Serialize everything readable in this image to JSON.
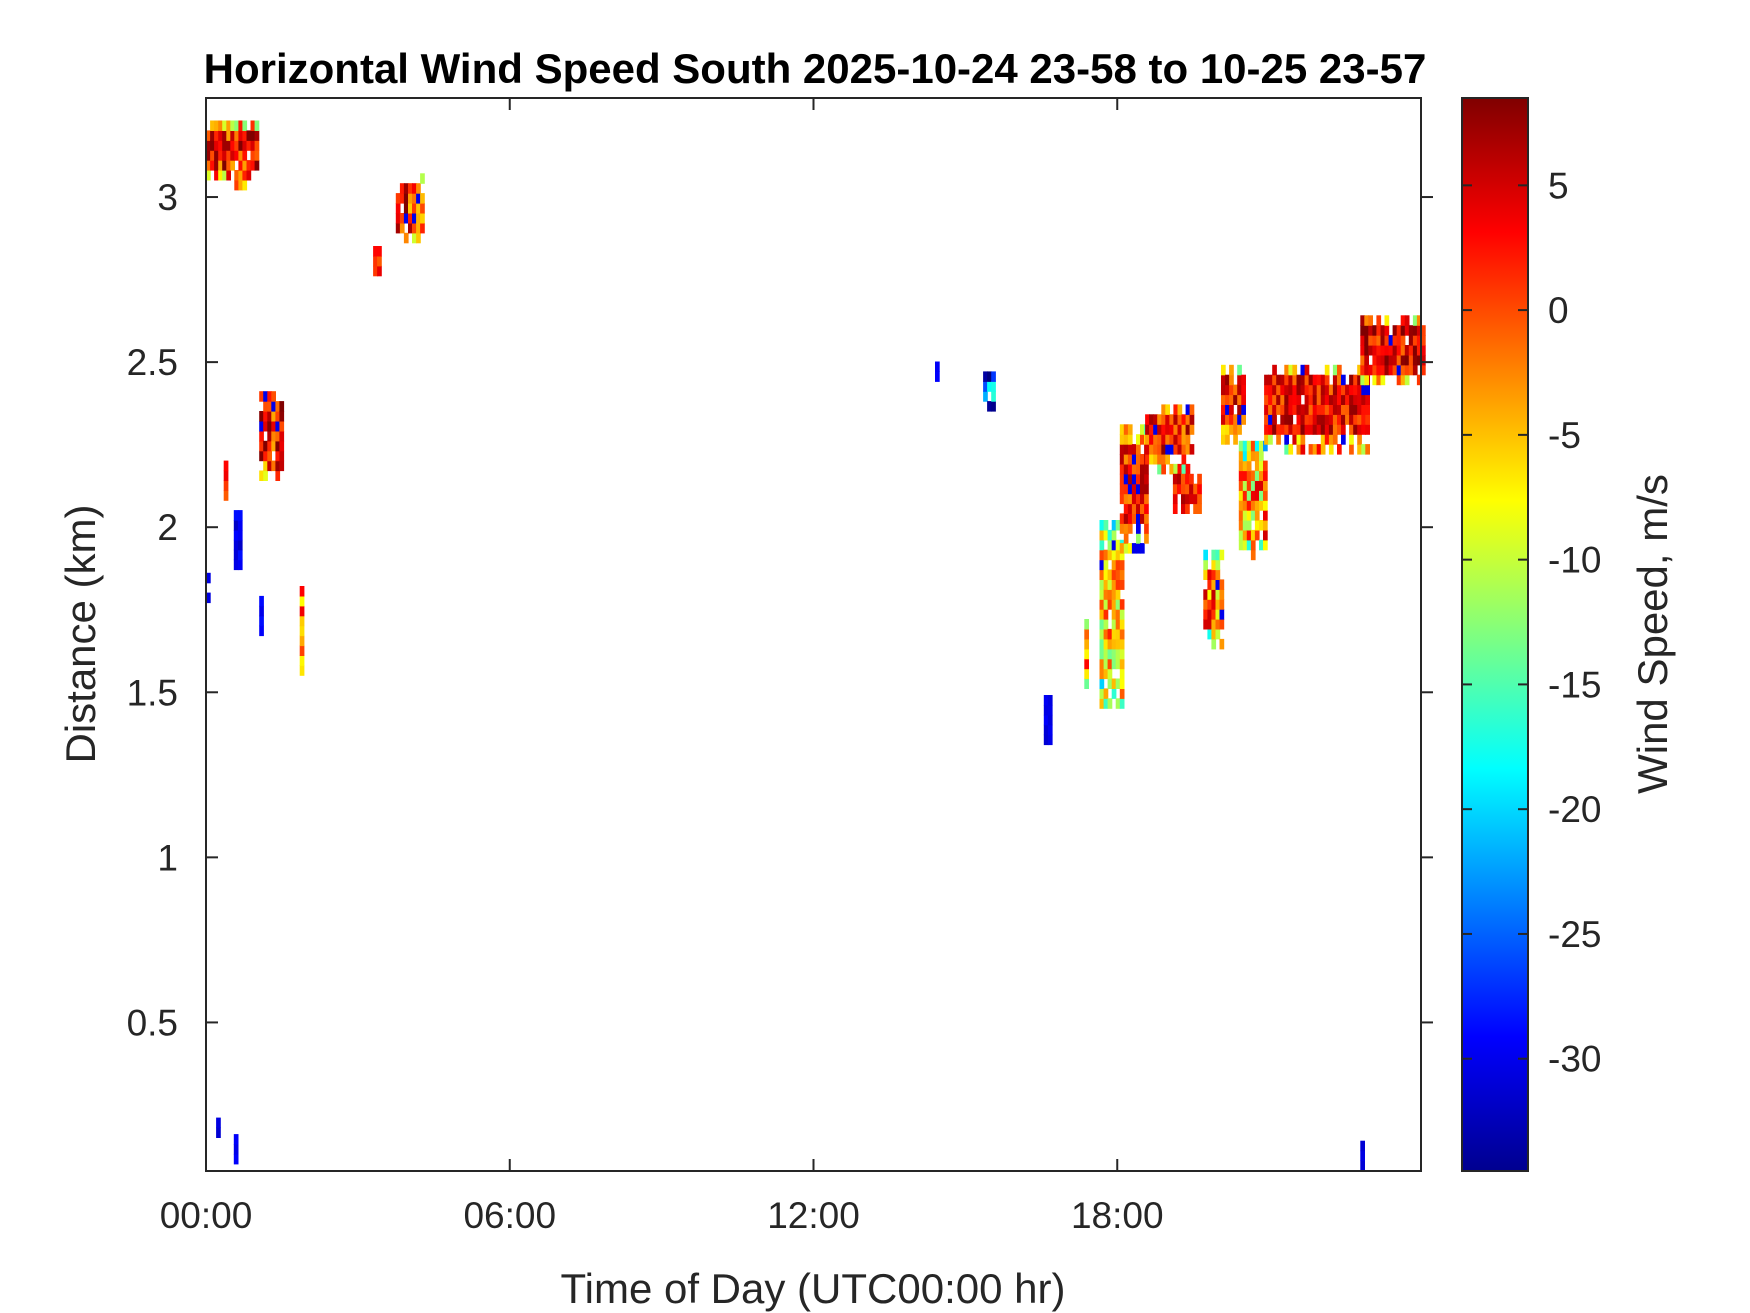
{
  "chart_data": {
    "type": "heatmap",
    "title": "Horizontal Wind Speed South 2025-10-24 23-58 to 10-25 23-57",
    "xlabel": "Time of Day (UTC00:00 hr)",
    "ylabel": "Distance (km)",
    "xlim": [
      0,
      24
    ],
    "ylim": [
      0.05,
      3.3
    ],
    "x_ticks": [
      0,
      6,
      12,
      18
    ],
    "x_tick_labels": [
      "00:00",
      "06:00",
      "12:00",
      "18:00"
    ],
    "y_ticks": [
      0.5,
      1,
      1.5,
      2,
      2.5,
      3
    ],
    "y_tick_labels": [
      "0.5",
      "1",
      "1.5",
      "2",
      "2.5",
      "3"
    ],
    "colorbar": {
      "label": "Wind Speed, m/s",
      "colormap": "jet",
      "range": [
        -34.5,
        8.5
      ],
      "ticks": [
        5,
        0,
        -5,
        -10,
        -15,
        -20,
        -25,
        -30
      ],
      "tick_labels": [
        "5",
        "0",
        "-5",
        "-10",
        "-15",
        "-20",
        "-25",
        "-30"
      ]
    },
    "grid": false,
    "time_step_hr": 0.08,
    "range_step_km": 0.03,
    "clusters": [
      {
        "t": [
          0.0,
          1.0
        ],
        "d": [
          3.02,
          3.22
        ],
        "v": 3,
        "spread": 14
      },
      {
        "t": [
          3.3,
          3.45
        ],
        "d": [
          2.76,
          2.82
        ],
        "v": 3,
        "spread": 8
      },
      {
        "t": [
          3.75,
          4.25
        ],
        "d": [
          2.86,
          3.05
        ],
        "v": 2,
        "spread": 16
      },
      {
        "t": [
          1.05,
          1.45
        ],
        "d": [
          2.14,
          2.4
        ],
        "v": 3,
        "spread": 14
      },
      {
        "t": [
          0.35,
          0.4
        ],
        "d": [
          2.08,
          2.17
        ],
        "v": 2,
        "spread": 8
      },
      {
        "t": [
          0.55,
          0.7
        ],
        "d": [
          1.87,
          2.05
        ],
        "v": -30,
        "spread": 3
      },
      {
        "t": [
          0.0,
          0.05
        ],
        "d": [
          1.74,
          1.87
        ],
        "v": -30,
        "spread": 3
      },
      {
        "t": [
          1.05,
          1.1
        ],
        "d": [
          1.67,
          1.76
        ],
        "v": -30,
        "spread": 3
      },
      {
        "t": [
          1.85,
          1.9
        ],
        "d": [
          1.55,
          1.79
        ],
        "v": 0,
        "spread": 14
      },
      {
        "t": [
          14.4,
          14.45
        ],
        "d": [
          2.44,
          2.47
        ],
        "v": -30,
        "spread": 2
      },
      {
        "t": [
          15.35,
          15.55
        ],
        "d": [
          2.35,
          2.44
        ],
        "v": -20,
        "spread": 14
      },
      {
        "t": [
          16.55,
          16.65
        ],
        "d": [
          1.34,
          1.46
        ],
        "v": -30,
        "spread": 2
      },
      {
        "t": [
          17.35,
          17.4
        ],
        "d": [
          1.48,
          1.71
        ],
        "v": -2,
        "spread": 12
      },
      {
        "t": [
          17.65,
          18.05
        ],
        "d": [
          1.45,
          2.0
        ],
        "v": -6,
        "spread": 16
      },
      {
        "t": [
          18.05,
          18.6
        ],
        "d": [
          1.92,
          2.3
        ],
        "v": 2,
        "spread": 10
      },
      {
        "t": [
          18.55,
          19.5
        ],
        "d": [
          2.16,
          2.36
        ],
        "v": 2,
        "spread": 12
      },
      {
        "t": [
          19.1,
          19.6
        ],
        "d": [
          2.04,
          2.14
        ],
        "v": 3,
        "spread": 8
      },
      {
        "t": [
          19.7,
          20.05
        ],
        "d": [
          1.63,
          1.9
        ],
        "v": -2,
        "spread": 16
      },
      {
        "t": [
          20.05,
          20.5
        ],
        "d": [
          2.25,
          2.47
        ],
        "v": 2,
        "spread": 12
      },
      {
        "t": [
          20.4,
          20.95
        ],
        "d": [
          1.9,
          2.25
        ],
        "v": -4,
        "spread": 18
      },
      {
        "t": [
          20.9,
          22.9
        ],
        "d": [
          2.22,
          2.47
        ],
        "v": 3,
        "spread": 10
      },
      {
        "t": [
          22.8,
          24.0
        ],
        "d": [
          2.43,
          2.62
        ],
        "v": 4,
        "spread": 11
      },
      {
        "t": [
          22.8,
          22.85
        ],
        "d": [
          0.05,
          0.12
        ],
        "v": -30,
        "spread": 2
      },
      {
        "t": [
          0.2,
          0.25
        ],
        "d": [
          0.15,
          0.19
        ],
        "v": -30,
        "spread": 2
      },
      {
        "t": [
          0.55,
          0.6
        ],
        "d": [
          0.07,
          0.14
        ],
        "v": -30,
        "spread": 2
      }
    ]
  }
}
